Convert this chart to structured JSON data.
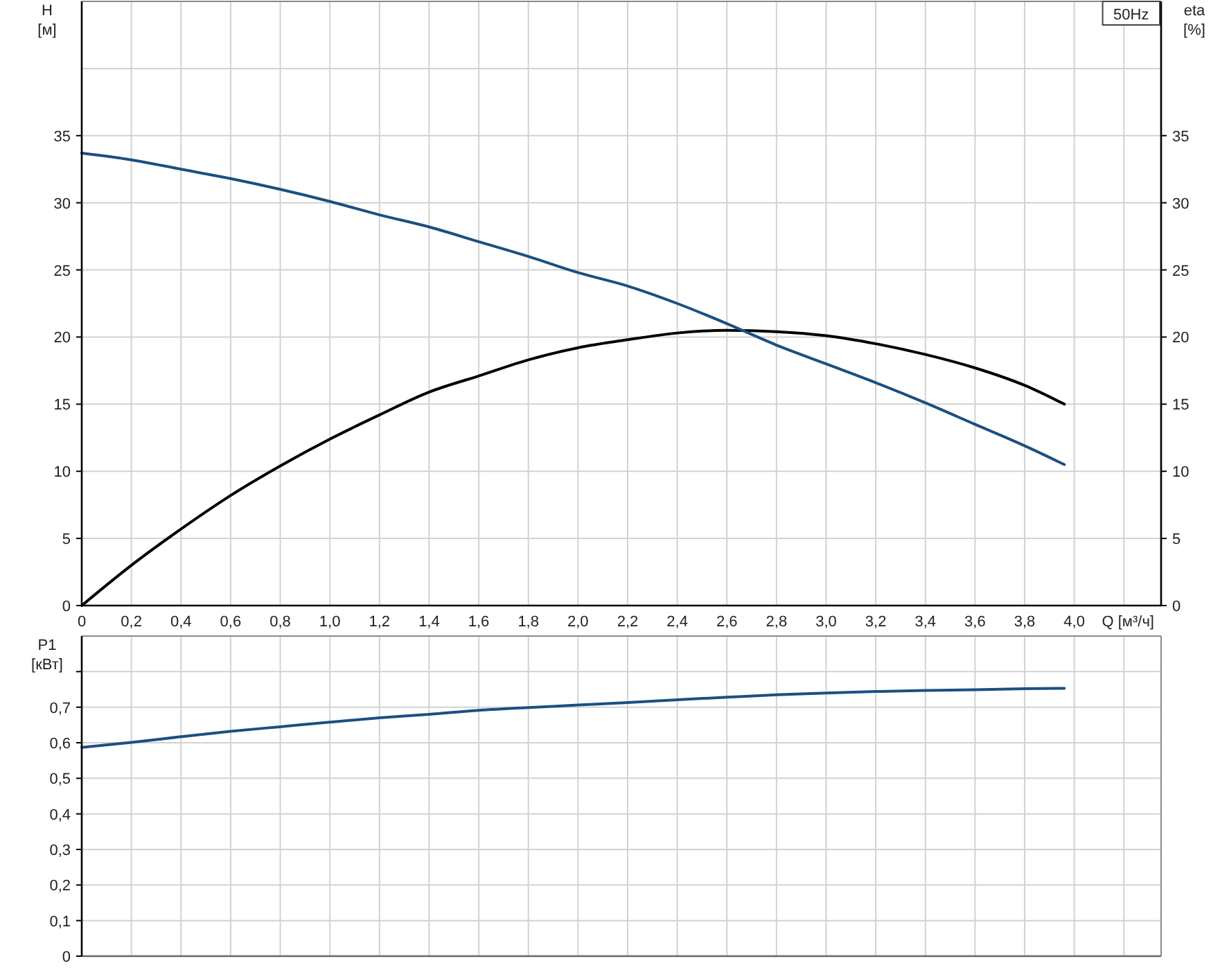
{
  "chart_data": [
    {
      "type": "line",
      "xlabel": "Q [м³/ч]",
      "ylabel": "H [м]",
      "y2label": "eta [%]",
      "annotations": [
        "50Hz"
      ],
      "grid": true,
      "xlim": [
        0,
        4.35
      ],
      "xticks": [
        0,
        {
          "value": 0.2,
          "label": "0,2"
        },
        {
          "value": 0.4,
          "label": "0,4"
        },
        {
          "value": 0.6,
          "label": "0,6"
        },
        {
          "value": 0.8,
          "label": "0,8"
        },
        {
          "value": 1.0,
          "label": "1,0"
        },
        {
          "value": 1.2,
          "label": "1,2"
        },
        {
          "value": 1.4,
          "label": "1,4"
        },
        {
          "value": 1.6,
          "label": "1,6"
        },
        {
          "value": 1.8,
          "label": "1,8"
        },
        {
          "value": 2.0,
          "label": "2,0"
        },
        {
          "value": 2.2,
          "label": "2,2"
        },
        {
          "value": 2.4,
          "label": "2,4"
        },
        {
          "value": 2.6,
          "label": "2,6"
        },
        {
          "value": 2.8,
          "label": "2,8"
        },
        {
          "value": 3.0,
          "label": "3,0"
        },
        {
          "value": 3.2,
          "label": "3,2"
        },
        {
          "value": 3.4,
          "label": "3,4"
        },
        {
          "value": 3.6,
          "label": "3,6"
        },
        {
          "value": 3.8,
          "label": "3,8"
        },
        {
          "value": 4.0,
          "label": "4,0"
        },
        {
          "value": 4.2,
          "label": null
        }
      ],
      "ylim": [
        0,
        45
      ],
      "yticks": [
        0,
        5,
        10,
        15,
        20,
        25,
        30,
        35,
        {
          "value": 40,
          "label": null
        }
      ],
      "y2lim": [
        0,
        45
      ],
      "y2ticks": [
        0,
        5,
        10,
        15,
        20,
        25,
        30,
        35
      ],
      "x": [
        0,
        0.2,
        0.4,
        0.6,
        0.8,
        1.0,
        1.2,
        1.4,
        1.6,
        1.8,
        2.0,
        2.2,
        2.4,
        2.6,
        2.8,
        3.0,
        3.2,
        3.4,
        3.6,
        3.8,
        3.96
      ],
      "series": [
        {
          "color": "#1c4f80",
          "values": [
            33.7,
            33.2,
            32.5,
            31.8,
            31.0,
            30.1,
            29.1,
            28.2,
            27.1,
            26.0,
            24.8,
            23.8,
            22.5,
            21.0,
            19.4,
            18.0,
            16.6,
            15.1,
            13.5,
            11.9,
            10.5
          ]
        },
        {
          "color": "#000000",
          "axis": "y2",
          "values": [
            0,
            3.0,
            5.7,
            8.2,
            10.4,
            12.4,
            14.2,
            15.9,
            17.1,
            18.3,
            19.2,
            19.8,
            20.3,
            20.5,
            20.4,
            20.1,
            19.5,
            18.7,
            17.7,
            16.4,
            15.0
          ]
        }
      ]
    },
    {
      "type": "line",
      "ylabel": "P1 [кВт]",
      "grid": true,
      "tick_labels": "y",
      "xlim": [
        0,
        4.35
      ],
      "xticks": [
        0,
        0.2,
        0.4,
        0.6,
        0.8,
        1.0,
        1.2,
        1.4,
        1.6,
        1.8,
        2.0,
        2.2,
        2.4,
        2.6,
        2.8,
        3.0,
        3.2,
        3.4,
        3.6,
        3.8,
        4.0,
        4.2
      ],
      "ylim": [
        0,
        0.9
      ],
      "yticks": [
        0,
        {
          "value": 0.1,
          "label": "0,1"
        },
        {
          "value": 0.2,
          "label": "0,2"
        },
        {
          "value": 0.3,
          "label": "0,3"
        },
        {
          "value": 0.4,
          "label": "0,4"
        },
        {
          "value": 0.5,
          "label": "0,5"
        },
        {
          "value": 0.6,
          "label": "0,6"
        },
        {
          "value": 0.7,
          "label": "0,7"
        },
        {
          "value": 0.8,
          "label": null
        }
      ],
      "x": [
        0,
        0.2,
        0.4,
        0.6,
        0.8,
        1.0,
        1.2,
        1.4,
        1.6,
        1.8,
        2.0,
        2.2,
        2.4,
        2.6,
        2.8,
        3.0,
        3.2,
        3.4,
        3.6,
        3.8,
        3.96
      ],
      "series": [
        {
          "color": "#1c4f80",
          "values": [
            0.587,
            0.601,
            0.617,
            0.632,
            0.645,
            0.658,
            0.67,
            0.68,
            0.691,
            0.699,
            0.706,
            0.713,
            0.721,
            0.728,
            0.735,
            0.74,
            0.744,
            0.747,
            0.749,
            0.752,
            0.753
          ]
        }
      ]
    }
  ]
}
